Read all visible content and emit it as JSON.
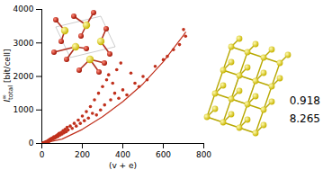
{
  "chart_data": {
    "type": "scatter",
    "x_label": "(v + e)",
    "y_label": {
      "text": "I",
      "superscript": "∞",
      "subscript": "total",
      "unit": "[bit/cell]"
    },
    "xlim": [
      0,
      800
    ],
    "xticks": [
      0,
      200,
      400,
      600,
      800
    ],
    "ylim": [
      0,
      4000
    ],
    "yticks": [
      0,
      1000,
      2000,
      3000,
      4000
    ],
    "series": [
      {
        "type": "scatter",
        "color": "#c0301c",
        "marker": "circle",
        "x": [
          5,
          8,
          10,
          12,
          15,
          18,
          20,
          22,
          25,
          28,
          30,
          32,
          35,
          38,
          40,
          42,
          45,
          48,
          50,
          55,
          58,
          60,
          65,
          70,
          72,
          78,
          80,
          85,
          90,
          95,
          100,
          105,
          110,
          115,
          120,
          125,
          130,
          140,
          150,
          160,
          170,
          180,
          190,
          200,
          210,
          220,
          230,
          240,
          250,
          260,
          270,
          280,
          290,
          300,
          310,
          320,
          330,
          340,
          350,
          360,
          370,
          380,
          390,
          400,
          420,
          440,
          460,
          480,
          500,
          520,
          560,
          600,
          620,
          650,
          680,
          700,
          710
        ],
        "values": [
          10,
          20,
          15,
          30,
          25,
          40,
          35,
          60,
          50,
          45,
          70,
          90,
          60,
          110,
          80,
          130,
          100,
          150,
          120,
          170,
          140,
          200,
          160,
          230,
          190,
          260,
          210,
          300,
          250,
          330,
          280,
          380,
          320,
          420,
          350,
          480,
          400,
          520,
          450,
          600,
          520,
          700,
          600,
          820,
          680,
          950,
          760,
          1100,
          900,
          1300,
          850,
          1500,
          1000,
          1700,
          1150,
          1900,
          2050,
          1300,
          1800,
          1500,
          2200,
          1350,
          2400,
          1600,
          1450,
          2100,
          1800,
          1700,
          2000,
          1900,
          2300,
          2500,
          2600,
          2800,
          2950,
          3400,
          3200
        ]
      },
      {
        "type": "line",
        "color": "#c0301c",
        "line_style": "solid",
        "x": [
          0,
          100,
          200,
          300,
          400,
          500,
          600,
          700,
          710
        ],
        "values": [
          0,
          130,
          420,
          800,
          1250,
          1780,
          2440,
          3230,
          3320
        ]
      }
    ],
    "annotations": [
      "0.918",
      "8.265"
    ]
  }
}
